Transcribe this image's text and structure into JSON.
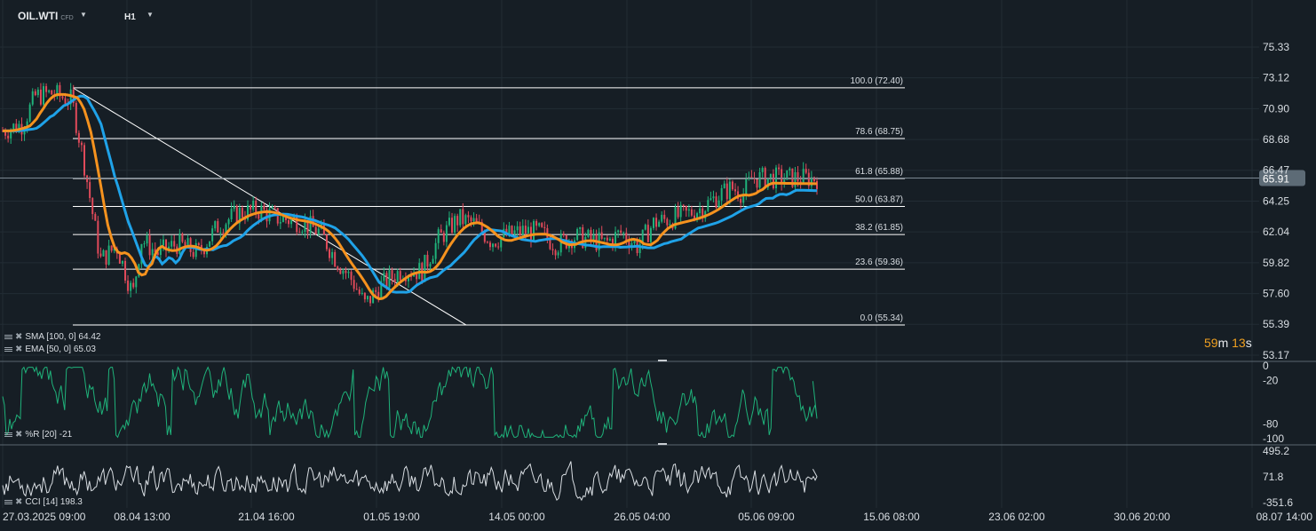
{
  "header": {
    "symbol": "OIL.WTI",
    "instrument_type": "CFD",
    "timeframe": "H1"
  },
  "price_axis": {
    "labels": [
      "75.33",
      "73.12",
      "70.90",
      "68.68",
      "66.47",
      "64.25",
      "62.04",
      "59.82",
      "57.60",
      "55.39",
      "53.17"
    ],
    "current_price": "65.91",
    "current_price_color": "#5d6b76"
  },
  "fibonacci": {
    "color": "#ffffff",
    "levels": [
      {
        "label": "100.0 (72.40)",
        "value": 72.4
      },
      {
        "label": "78.6 (68.75)",
        "value": 68.75
      },
      {
        "label": "61.8 (65.88)",
        "value": 65.88
      },
      {
        "label": "50.0 (63.87)",
        "value": 63.87
      },
      {
        "label": "38.2 (61.85)",
        "value": 61.85
      },
      {
        "label": "23.6 (59.36)",
        "value": 59.36
      },
      {
        "label": "0.0 (55.34)",
        "value": 55.34
      }
    ]
  },
  "indicators": {
    "sma": {
      "label": "SMA [100, 0] 64.42",
      "color": "#1fa2e8"
    },
    "ema": {
      "label": "EMA [50, 0] 65.03",
      "color": "#f5921e"
    },
    "wr": {
      "label": "%R [20] -21",
      "color": "#1fb27a",
      "axis_labels": [
        "0",
        "-20",
        "-80",
        "-100"
      ]
    },
    "cci": {
      "label": "CCI [14] 198.3",
      "color": "#d8dde2",
      "axis_labels": [
        "495.2",
        "71.8",
        "-351.6"
      ]
    }
  },
  "countdown": {
    "minutes": "59",
    "m": "m",
    "seconds": "13",
    "s": "s"
  },
  "time_axis": {
    "labels": [
      "27.03.2025  09:00",
      "08.04  13:00",
      "21.04  16:00",
      "01.05  19:00",
      "14.05  00:00",
      "26.05  04:00",
      "05.06  09:00",
      "15.06  08:00",
      "23.06  02:00",
      "30.06  20:00",
      "08.07  14:00"
    ]
  },
  "chart_data": {
    "type": "candlestick",
    "title": "OIL.WTI",
    "ylim": [
      53.17,
      75.33
    ],
    "x_range": [
      "27.03.2025 09:00",
      "08.07 14:00"
    ],
    "grid": true,
    "price_points": [
      {
        "t": 0.0,
        "v": 69.3
      },
      {
        "t": 0.025,
        "v": 69.8
      },
      {
        "t": 0.04,
        "v": 71.8
      },
      {
        "t": 0.06,
        "v": 72.0
      },
      {
        "t": 0.085,
        "v": 71.5
      },
      {
        "t": 0.1,
        "v": 67.0
      },
      {
        "t": 0.12,
        "v": 60.0
      },
      {
        "t": 0.14,
        "v": 61.0
      },
      {
        "t": 0.16,
        "v": 57.5
      },
      {
        "t": 0.17,
        "v": 61.5
      },
      {
        "t": 0.19,
        "v": 60.5
      },
      {
        "t": 0.215,
        "v": 61.2
      },
      {
        "t": 0.24,
        "v": 60.5
      },
      {
        "t": 0.265,
        "v": 62.5
      },
      {
        "t": 0.29,
        "v": 63.4
      },
      {
        "t": 0.315,
        "v": 63.6
      },
      {
        "t": 0.34,
        "v": 63.0
      },
      {
        "t": 0.365,
        "v": 62.8
      },
      {
        "t": 0.39,
        "v": 62.0
      },
      {
        "t": 0.41,
        "v": 60.0
      },
      {
        "t": 0.43,
        "v": 58.5
      },
      {
        "t": 0.445,
        "v": 56.8
      },
      {
        "t": 0.465,
        "v": 58.2
      },
      {
        "t": 0.49,
        "v": 59.3
      },
      {
        "t": 0.515,
        "v": 59.2
      },
      {
        "t": 0.535,
        "v": 61.5
      },
      {
        "t": 0.56,
        "v": 63.0
      },
      {
        "t": 0.58,
        "v": 62.6
      },
      {
        "t": 0.6,
        "v": 61.4
      },
      {
        "t": 0.62,
        "v": 61.8
      },
      {
        "t": 0.64,
        "v": 62.1
      },
      {
        "t": 0.66,
        "v": 62.0
      },
      {
        "t": 0.68,
        "v": 61.1
      },
      {
        "t": 0.7,
        "v": 61.7
      },
      {
        "t": 0.72,
        "v": 61.5
      },
      {
        "t": 0.74,
        "v": 61.2
      },
      {
        "t": 0.76,
        "v": 62.0
      },
      {
        "t": 0.78,
        "v": 61.0
      },
      {
        "t": 0.8,
        "v": 62.7
      },
      {
        "t": 0.82,
        "v": 63.0
      },
      {
        "t": 0.84,
        "v": 63.3
      },
      {
        "t": 0.86,
        "v": 63.8
      },
      {
        "t": 0.88,
        "v": 64.7
      },
      {
        "t": 0.895,
        "v": 65.2
      },
      {
        "t": 0.91,
        "v": 64.8
      },
      {
        "t": 0.92,
        "v": 65.9
      }
    ],
    "series": [
      {
        "name": "SMA [100, 0]",
        "last": 64.42
      },
      {
        "name": "EMA [50, 0]",
        "last": 65.03
      },
      {
        "name": "%R [20]",
        "last": -21
      },
      {
        "name": "CCI [14]",
        "last": 198.3
      }
    ],
    "trendline": {
      "from": 72.4,
      "to": 55.34
    }
  }
}
